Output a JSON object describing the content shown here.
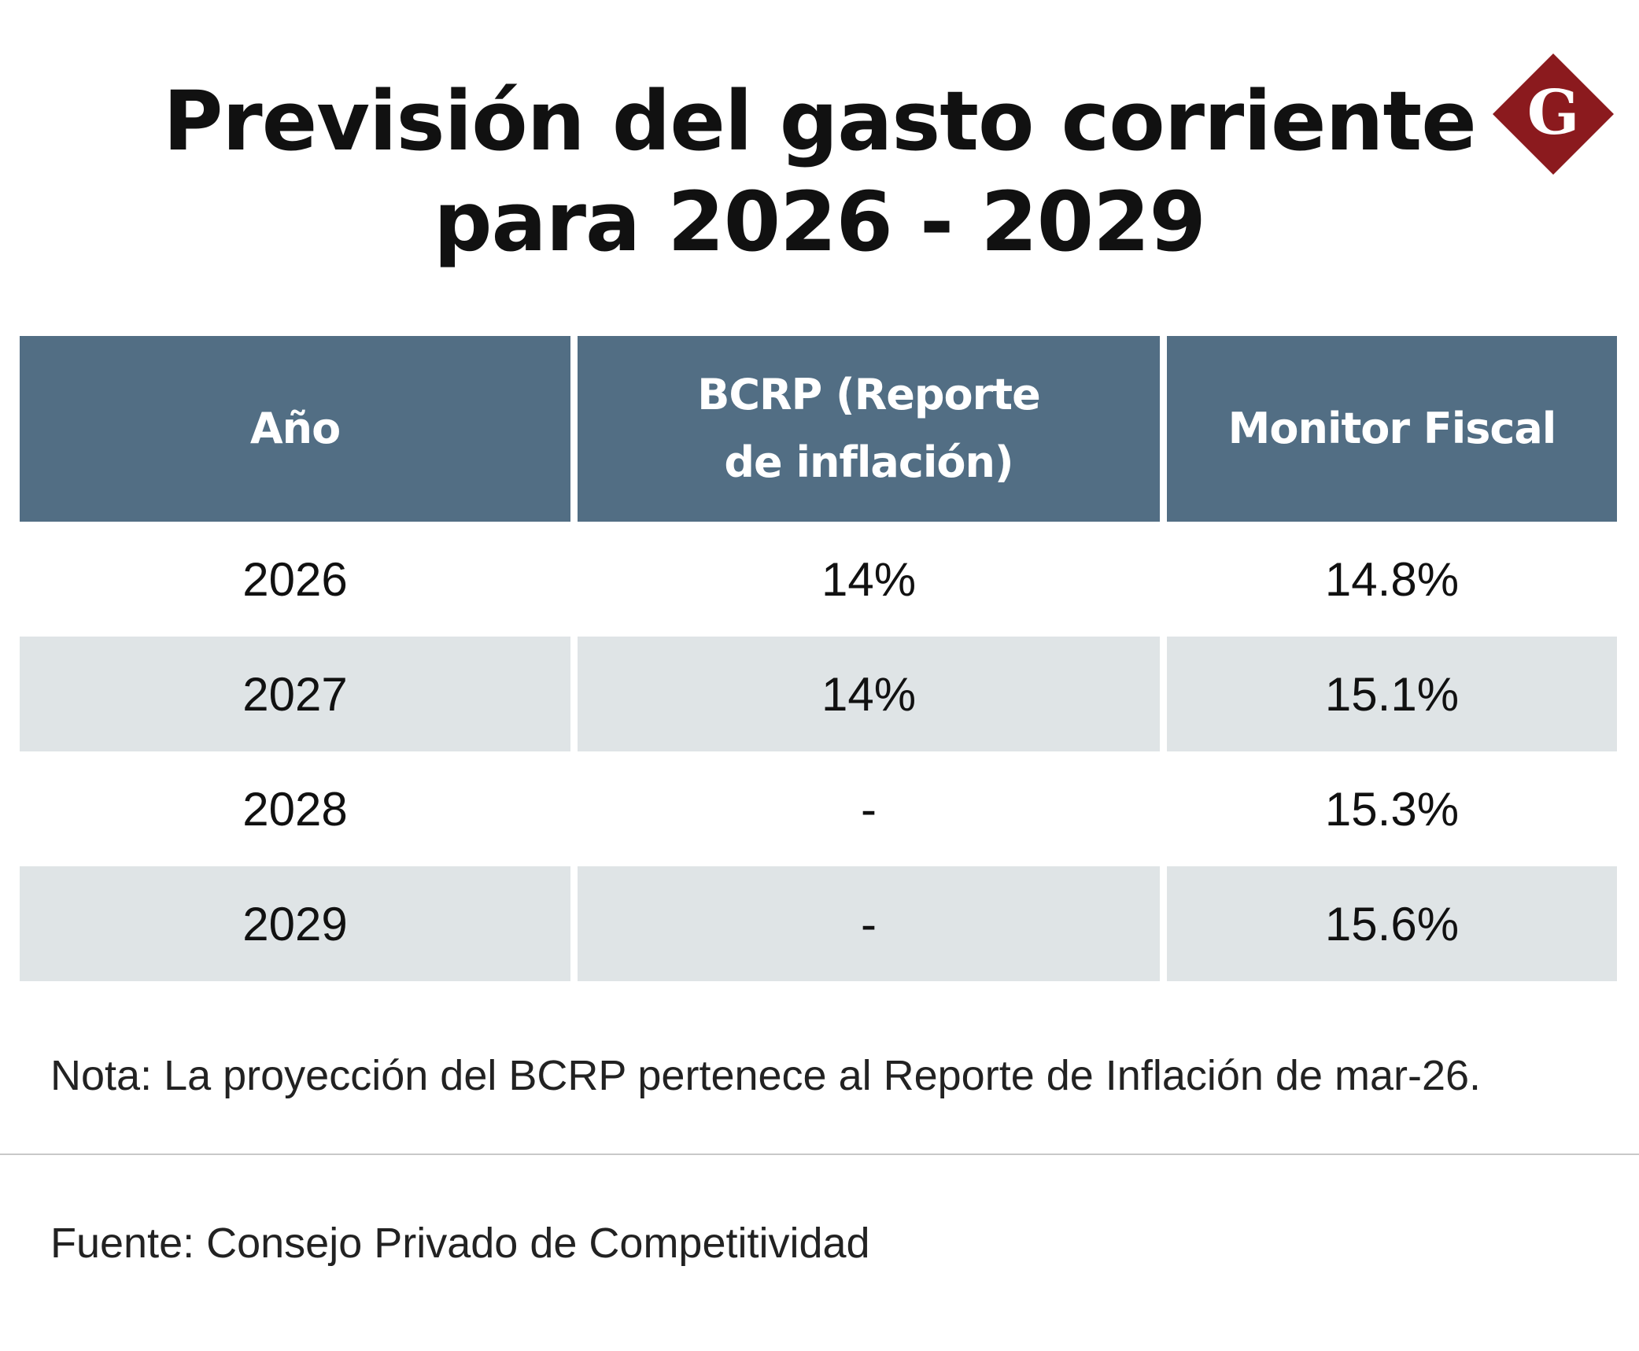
{
  "title": {
    "line1": "Previsión del gasto corriente",
    "line2": "para 2026 - 2029"
  },
  "logo": {
    "letter": "G",
    "icon": "diamond-g-logo-icon",
    "color": "#8b1a1e"
  },
  "colors": {
    "header_bg": "#526e84",
    "header_text": "#ffffff",
    "alt_row_bg": "#dfe4e6"
  },
  "table": {
    "headers": {
      "year": "Año",
      "bcrp_line1": "BCRP (Reporte",
      "bcrp_line2": "de inflación)",
      "monitor": "Monitor Fiscal"
    },
    "rows": [
      {
        "year": "2026",
        "bcrp": "14%",
        "monitor": "14.8%"
      },
      {
        "year": "2027",
        "bcrp": "14%",
        "monitor": "15.1%"
      },
      {
        "year": "2028",
        "bcrp": "-",
        "monitor": "15.3%"
      },
      {
        "year": "2029",
        "bcrp": "-",
        "monitor": "15.6%"
      }
    ]
  },
  "note": "Nota: La proyección del BCRP pertenece al Reporte de Inflación de mar-26.",
  "source": "Fuente: Consejo Privado de Competitividad",
  "chart_data": {
    "type": "table",
    "title": "Previsión del gasto corriente para 2026 - 2029",
    "columns": [
      "Año",
      "BCRP (Reporte de inflación)",
      "Monitor Fiscal"
    ],
    "categories": [
      "2026",
      "2027",
      "2028",
      "2029"
    ],
    "series": [
      {
        "name": "BCRP (Reporte de inflación)",
        "values": [
          14,
          14,
          null,
          null
        ]
      },
      {
        "name": "Monitor Fiscal",
        "values": [
          14.8,
          15.1,
          15.3,
          15.6
        ]
      }
    ],
    "unit": "%"
  }
}
